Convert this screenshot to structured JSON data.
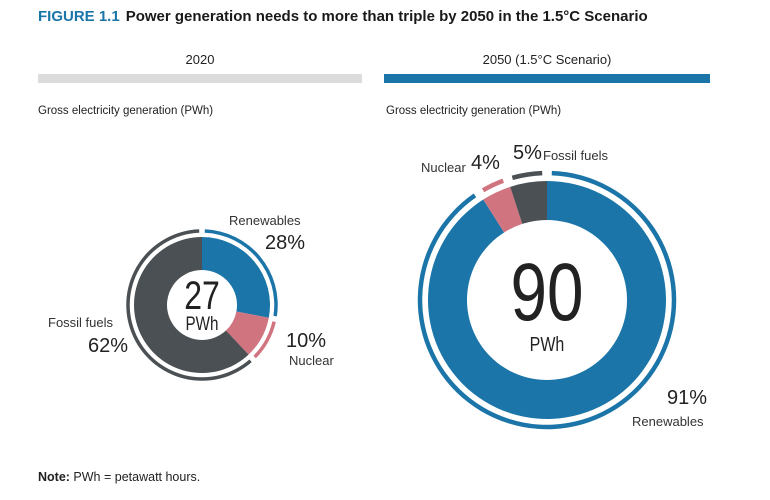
{
  "figure_label": "FIGURE 1.1",
  "title": "Power generation needs to more than triple by 2050 in the 1.5°C Scenario",
  "note_label": "Note:",
  "note_text": " PWh = petawatt hours.",
  "colors": {
    "renewables": "#1b75a8",
    "nuclear": "#d07480",
    "fossil": "#4a5053",
    "bar_2020": "#dcdcdc",
    "bar_2050": "#1b75a8"
  },
  "chart_data": [
    {
      "type": "pie",
      "title": "2020",
      "subtitle": "Gross electricity generation (PWh)",
      "total": "27",
      "unit": "PWh",
      "slices": [
        {
          "name": "Renewables",
          "value": 28,
          "label": "28%"
        },
        {
          "name": "Nuclear",
          "value": 10,
          "label": "10%"
        },
        {
          "name": "Fossil fuels",
          "value": 62,
          "label": "62%"
        }
      ]
    },
    {
      "type": "pie",
      "title": "2050 (1.5°C Scenario)",
      "subtitle": "Gross electricity generation (PWh)",
      "total": "90",
      "unit": "PWh",
      "slices": [
        {
          "name": "Renewables",
          "value": 91,
          "label": "91%"
        },
        {
          "name": "Nuclear",
          "value": 4,
          "label": "4%"
        },
        {
          "name": "Fossil fuels",
          "value": 5,
          "label": "5%"
        }
      ]
    }
  ]
}
